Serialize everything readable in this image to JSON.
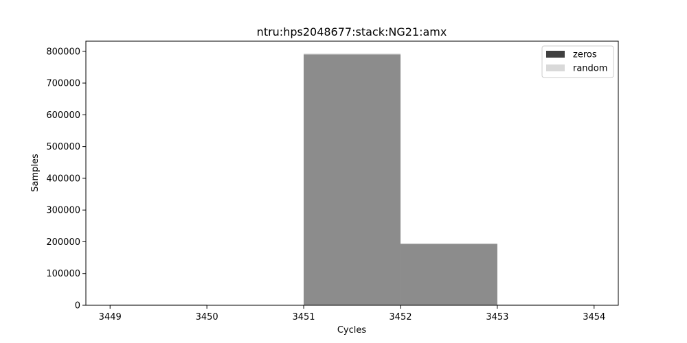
{
  "chart_data": {
    "type": "bar",
    "title": "ntru:hps2048677:stack:NG21:amx",
    "xlabel": "Cycles",
    "ylabel": "Samples",
    "xlim": [
      3448.75,
      3454.25
    ],
    "ylim": [
      0,
      832000
    ],
    "x_ticks": [
      3449,
      3450,
      3451,
      3452,
      3453,
      3454
    ],
    "y_ticks": [
      0,
      100000,
      200000,
      300000,
      400000,
      500000,
      600000,
      700000,
      800000
    ],
    "bin_edges": [
      3449,
      3450,
      3451,
      3452,
      3453,
      3454
    ],
    "series": [
      {
        "name": "zeros",
        "color": "#404040",
        "alpha": 1.0,
        "values": [
          1500,
          0,
          790000,
          193000,
          1500
        ]
      },
      {
        "name": "random",
        "color": "#c0c0c0",
        "alpha": 0.6,
        "values": [
          1500,
          0,
          793000,
          195000,
          1500
        ]
      }
    ],
    "legend_position": "top-right",
    "grid": false
  }
}
